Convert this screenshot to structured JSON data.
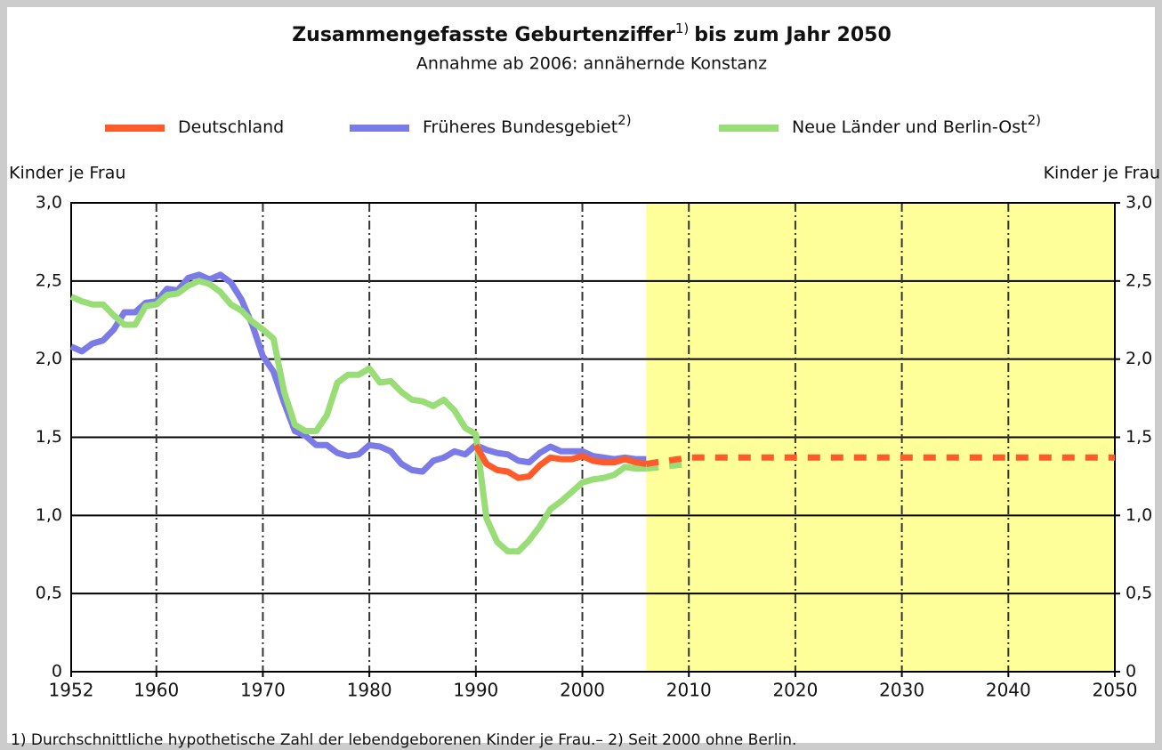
{
  "chart_data": {
    "type": "line",
    "title": "Zusammengefasste Geburtenziffer",
    "title_note": "1)",
    "title_rest": "bis zum Jahr 2050",
    "subtitle": "Annahme ab 2006: annähernde Konstanz",
    "ylabel": "Kinder je Frau",
    "y2label": "Kinder je Frau",
    "footnote": "1) Durchschnittliche hypothetische Zahl der lebendgeborenen Kinder je Frau.– 2) Seit 2000 ohne Berlin.",
    "projection_start": 2006,
    "projection_color": "#ffff99",
    "x": [
      1952,
      1953,
      1954,
      1955,
      1956,
      1957,
      1958,
      1959,
      1960,
      1961,
      1962,
      1963,
      1964,
      1965,
      1966,
      1967,
      1968,
      1969,
      1970,
      1971,
      1972,
      1973,
      1974,
      1975,
      1976,
      1977,
      1978,
      1979,
      1980,
      1981,
      1982,
      1983,
      1984,
      1985,
      1986,
      1987,
      1988,
      1989,
      1990,
      1991,
      1992,
      1993,
      1994,
      1995,
      1996,
      1997,
      1998,
      1999,
      2000,
      2001,
      2002,
      2003,
      2004,
      2005,
      2006,
      2010,
      2020,
      2030,
      2040,
      2050
    ],
    "series": [
      {
        "name": "Deutschland",
        "color": "#ff5a2a",
        "values": [
          null,
          null,
          null,
          null,
          null,
          null,
          null,
          null,
          null,
          null,
          null,
          null,
          null,
          null,
          null,
          null,
          null,
          null,
          null,
          null,
          null,
          null,
          null,
          null,
          null,
          null,
          null,
          null,
          null,
          null,
          null,
          null,
          null,
          null,
          null,
          null,
          null,
          null,
          1.45,
          1.33,
          1.29,
          1.28,
          1.24,
          1.25,
          1.32,
          1.37,
          1.36,
          1.36,
          1.38,
          1.35,
          1.34,
          1.34,
          1.36,
          1.34,
          1.33,
          1.37,
          1.37,
          1.37,
          1.37,
          1.37
        ]
      },
      {
        "name": "Früheres Bundesgebiet",
        "name_note": "2)",
        "color": "#7b7be8",
        "values": [
          2.08,
          2.05,
          2.1,
          2.12,
          2.19,
          2.3,
          2.3,
          2.36,
          2.37,
          2.45,
          2.44,
          2.52,
          2.54,
          2.51,
          2.54,
          2.49,
          2.38,
          2.22,
          2.02,
          1.92,
          1.72,
          1.54,
          1.51,
          1.45,
          1.45,
          1.4,
          1.38,
          1.39,
          1.45,
          1.44,
          1.41,
          1.33,
          1.29,
          1.28,
          1.35,
          1.37,
          1.41,
          1.39,
          1.45,
          1.42,
          1.4,
          1.39,
          1.35,
          1.34,
          1.4,
          1.44,
          1.41,
          1.41,
          1.41,
          1.38,
          1.37,
          1.36,
          1.37,
          1.36,
          1.36,
          null,
          null,
          null,
          null,
          null
        ]
      },
      {
        "name": "Neue Länder und Berlin-Ost",
        "name_note": "2)",
        "color": "#99dd77",
        "values": [
          2.4,
          2.37,
          2.35,
          2.35,
          2.28,
          2.22,
          2.22,
          2.34,
          2.35,
          2.41,
          2.42,
          2.47,
          2.5,
          2.48,
          2.43,
          2.35,
          2.31,
          2.24,
          2.19,
          2.13,
          1.79,
          1.58,
          1.54,
          1.54,
          1.64,
          1.85,
          1.9,
          1.9,
          1.94,
          1.85,
          1.86,
          1.79,
          1.74,
          1.73,
          1.7,
          1.74,
          1.67,
          1.56,
          1.52,
          0.98,
          0.83,
          0.77,
          0.77,
          0.84,
          0.93,
          1.04,
          1.09,
          1.15,
          1.21,
          1.23,
          1.24,
          1.26,
          1.31,
          1.3,
          1.3,
          1.33,
          null,
          null,
          null,
          null
        ]
      }
    ],
    "xlim": [
      1952,
      2050
    ],
    "xticks": [
      1952,
      1960,
      1970,
      1980,
      1990,
      2000,
      2010,
      2020,
      2030,
      2040,
      2050
    ],
    "ylim": [
      0,
      3
    ],
    "yticks": [
      0,
      {
        "value": 0.5,
        "label": "0,5"
      },
      {
        "value": 1,
        "label": "1,0"
      },
      {
        "value": 1.5,
        "label": "1,5"
      },
      {
        "value": 2,
        "label": "2,0"
      },
      {
        "value": 2.5,
        "label": "2,5"
      },
      {
        "value": 3,
        "label": "3,0"
      }
    ],
    "y2lim": [
      0,
      3
    ],
    "y2ticks": [
      0,
      {
        "value": 0.5,
        "label": "0,5"
      },
      {
        "value": 1,
        "label": "1,0"
      },
      {
        "value": 1.5,
        "label": "1,5"
      },
      {
        "value": 2,
        "label": "2,0"
      },
      {
        "value": 2.5,
        "label": "2,5"
      },
      {
        "value": 3,
        "label": "3,0"
      }
    ],
    "grid": true
  }
}
